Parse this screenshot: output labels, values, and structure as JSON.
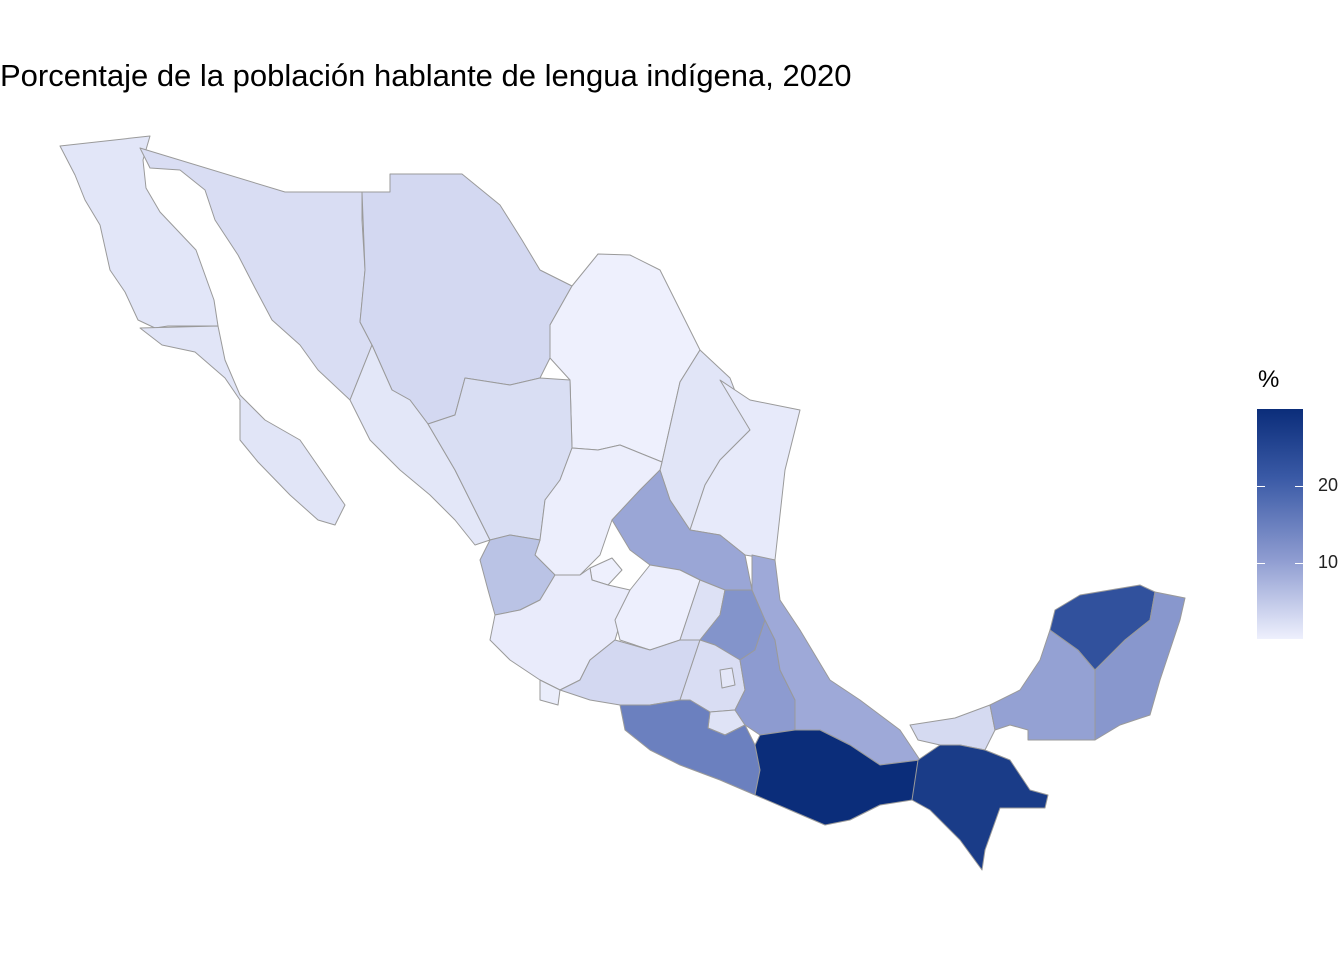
{
  "title": "Porcentaje de la población hablante de lengua indígena, 2020",
  "legend": {
    "title": "%",
    "labels": [
      "20",
      "10"
    ],
    "color_low": "#eef0fd",
    "color_high": "#0b2d7a"
  },
  "chart_data": {
    "type": "choropleth",
    "title": "Porcentaje de la población hablante de lengua indígena, 2020",
    "legend_title": "%",
    "legend_breaks": [
      10,
      20
    ],
    "value_range": [
      0.2,
      31.2
    ],
    "regions": [
      {
        "name": "Baja California",
        "value": 1.5
      },
      {
        "name": "Baja California Sur",
        "value": 1.6
      },
      {
        "name": "Sonora",
        "value": 2.6
      },
      {
        "name": "Chihuahua",
        "value": 3.2
      },
      {
        "name": "Coahuila",
        "value": 0.2
      },
      {
        "name": "Nuevo León",
        "value": 1.6
      },
      {
        "name": "Tamaulipas",
        "value": 1.0
      },
      {
        "name": "Sinaloa",
        "value": 1.4
      },
      {
        "name": "Durango",
        "value": 2.5
      },
      {
        "name": "Zacatecas",
        "value": 0.4
      },
      {
        "name": "Nayarit",
        "value": 6.0
      },
      {
        "name": "Aguascalientes",
        "value": 0.2
      },
      {
        "name": "Jalisco",
        "value": 0.8
      },
      {
        "name": "San Luis Potosí",
        "value": 9.6
      },
      {
        "name": "Guanajuato",
        "value": 0.3
      },
      {
        "name": "Querétaro",
        "value": 2.1
      },
      {
        "name": "Hidalgo",
        "value": 12.3
      },
      {
        "name": "Michoacán",
        "value": 3.2
      },
      {
        "name": "Colima",
        "value": 0.6
      },
      {
        "name": "México",
        "value": 2.6
      },
      {
        "name": "Ciudad de México",
        "value": 1.3
      },
      {
        "name": "Morelos",
        "value": 1.9
      },
      {
        "name": "Tlaxcala",
        "value": 2.3
      },
      {
        "name": "Veracruz",
        "value": 9.2
      },
      {
        "name": "Puebla",
        "value": 11.0
      },
      {
        "name": "Guerrero",
        "value": 15.5
      },
      {
        "name": "Oaxaca",
        "value": 31.2
      },
      {
        "name": "Tabasco",
        "value": 3.0
      },
      {
        "name": "Chiapas",
        "value": 28.2
      },
      {
        "name": "Campeche",
        "value": 10.3
      },
      {
        "name": "Yucatán",
        "value": 23.7
      },
      {
        "name": "Quintana Roo",
        "value": 11.7
      }
    ]
  }
}
